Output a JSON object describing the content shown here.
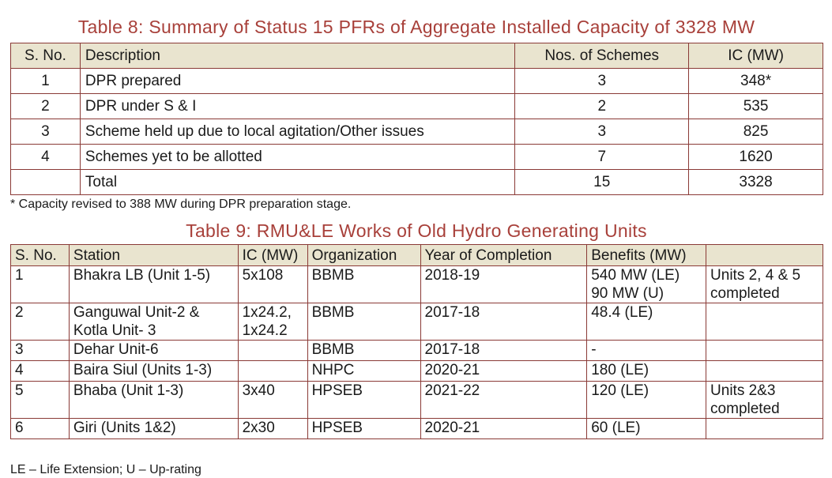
{
  "table8": {
    "title": "Table 8: Summary of Status 15 PFRs of Aggregate Installed Capacity of 3328 MW",
    "headers": [
      "S. No.",
      "Description",
      "Nos. of Schemes",
      "IC (MW)"
    ],
    "rows": [
      [
        "1",
        "DPR prepared",
        "3",
        "348*"
      ],
      [
        "2",
        "DPR under S & I",
        "2",
        "535"
      ],
      [
        "3",
        "Scheme held up due to local agitation/Other issues",
        "3",
        "825"
      ],
      [
        "4",
        "Schemes yet to be allotted",
        "7",
        "1620"
      ],
      [
        "",
        "Total",
        "15",
        "3328"
      ]
    ],
    "note": "* Capacity revised to 388 MW during DPR preparation stage."
  },
  "table9": {
    "title": "Table 9: RMU&LE Works of Old Hydro Generating Units",
    "headers": [
      "S. No.",
      "Station",
      "IC (MW)",
      "Organization",
      "Year of Completion",
      "Benefits (MW)",
      ""
    ],
    "rows": [
      [
        "1",
        "Bhakra LB (Unit 1-5)",
        "5x108",
        "BBMB",
        "2018-19",
        "540 MW (LE)\n90 MW (U)",
        "Units 2, 4 & 5\ncompleted"
      ],
      [
        "2",
        "Ganguwal Unit-2 &\nKotla Unit- 3",
        "1x24.2,\n1x24.2",
        "BBMB",
        "2017-18",
        "48.4 (LE)",
        ""
      ],
      [
        "3",
        "Dehar Unit-6",
        "",
        "BBMB",
        "2017-18",
        "-",
        ""
      ],
      [
        "4",
        "Baira Siul (Units 1-3)",
        "",
        "NHPC",
        "2020-21",
        "180 (LE)",
        ""
      ],
      [
        "5",
        "Bhaba (Unit 1-3)",
        "3x40",
        "HPSEB",
        "2021-22",
        "120 (LE)",
        "Units 2&3\ncompleted"
      ],
      [
        "6",
        "Giri (Units 1&2)",
        "2x30",
        "HPSEB",
        "2020-21",
        "60 (LE)",
        ""
      ]
    ],
    "note": "LE – Life Extension; U – Up-rating"
  }
}
